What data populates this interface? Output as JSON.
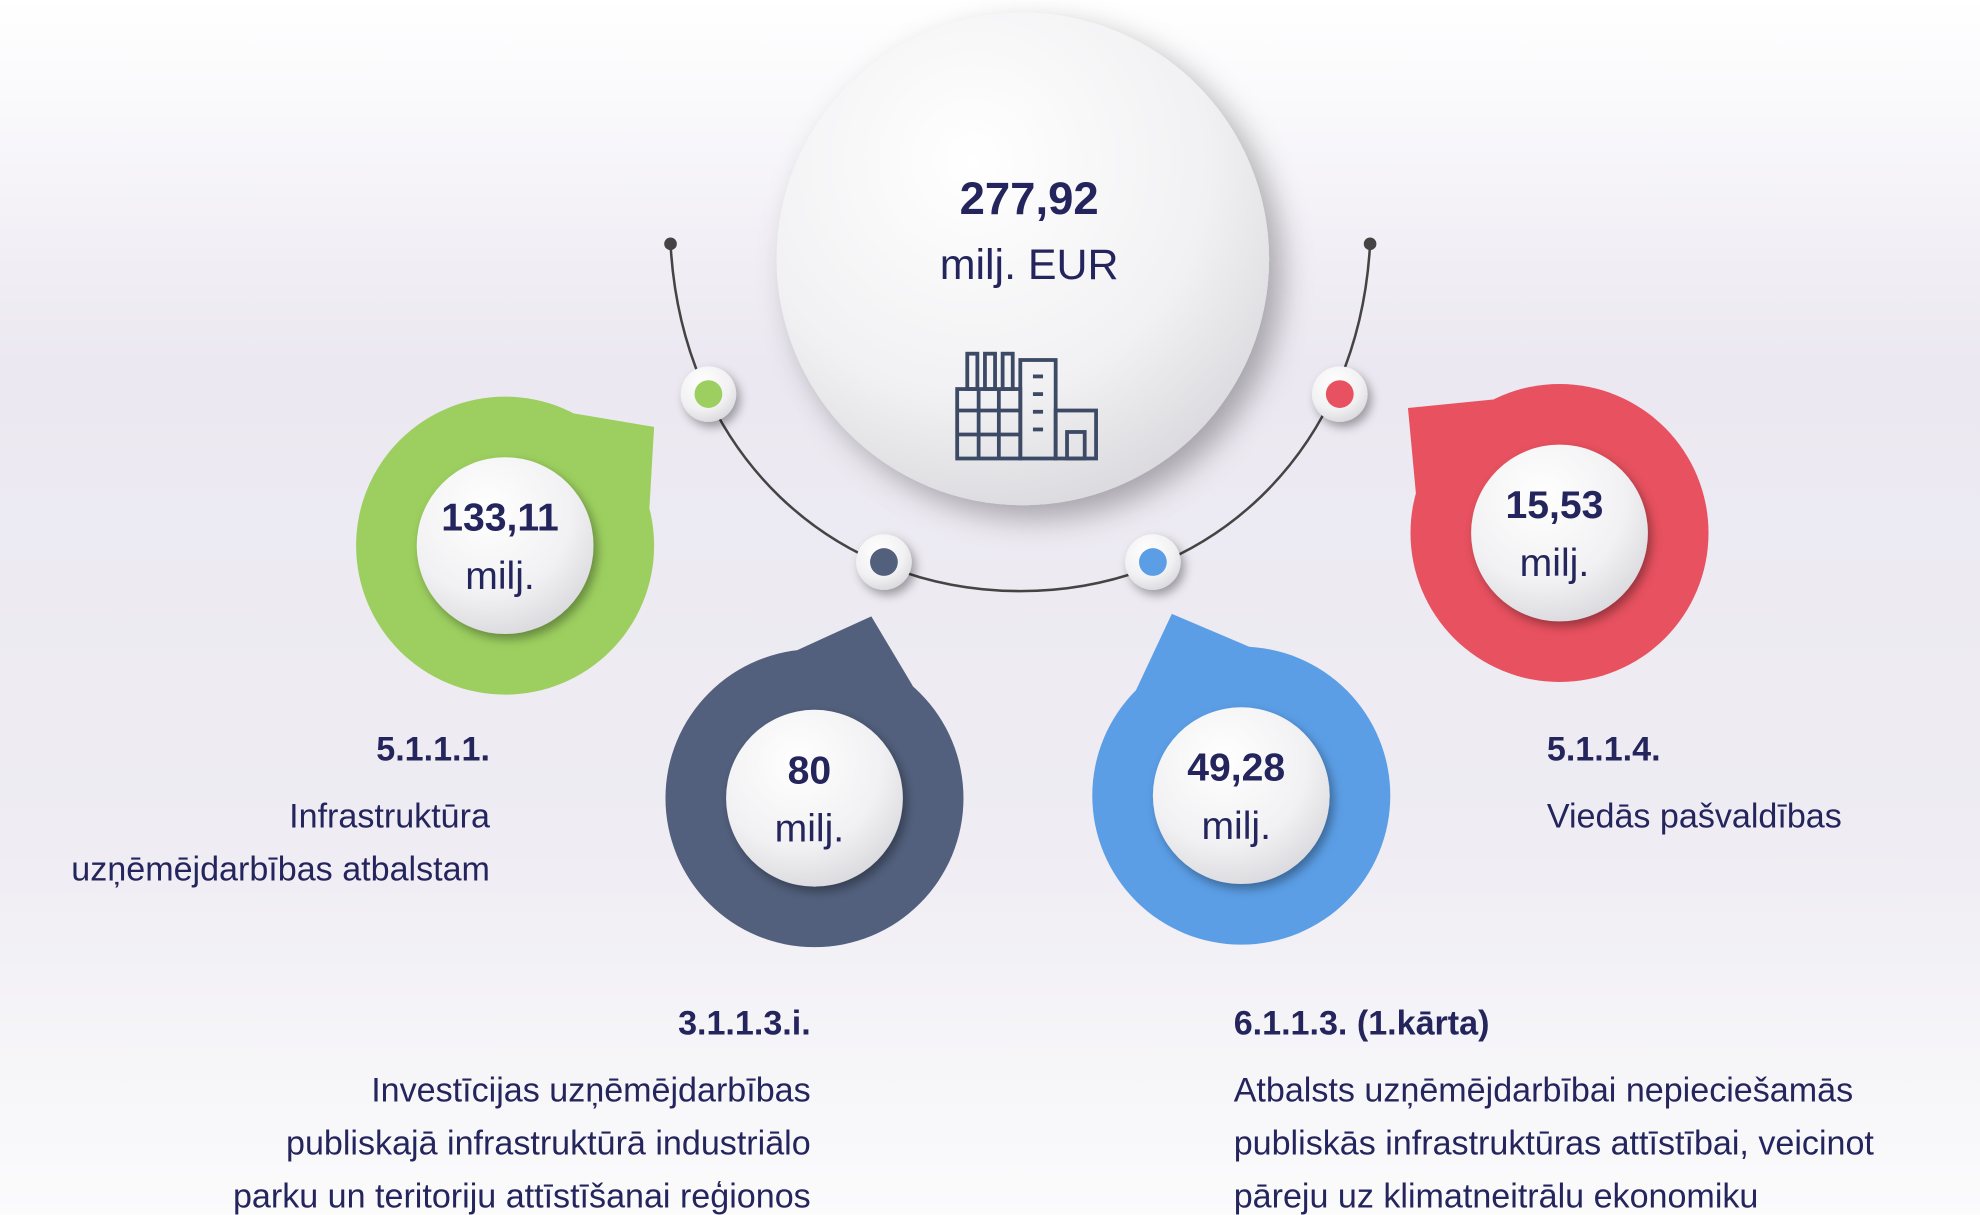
{
  "total": {
    "value": "277,92",
    "unit": "milj. EUR"
  },
  "items": [
    {
      "value": "133,11",
      "unit": "milj.",
      "code": "5.1.1.1.",
      "description": [
        "Infrastruktūra",
        "uzņēmējdarbības atbalstam"
      ]
    },
    {
      "value": "80",
      "unit": "milj.",
      "code": "3.1.1.3.i.",
      "description": [
        "Investīcijas uzņēmējdarbības",
        "publiskajā infrastruktūrā industriālo",
        "parku un teritoriju attīstīšanai reģionos"
      ]
    },
    {
      "value": "49,28",
      "unit": "milj.",
      "code": "6.1.1.3. (1.kārta)",
      "description": [
        "Atbalsts uzņēmējdarbībai nepieciešamās",
        "publiskās infrastruktūras attīstībai, veicinot",
        "pāreju uz klimatneitrālu ekonomiku"
      ]
    },
    {
      "value": "15,53",
      "unit": "milj.",
      "code": "5.1.1.4.",
      "description": [
        "Viedās pašvaldības"
      ]
    }
  ]
}
